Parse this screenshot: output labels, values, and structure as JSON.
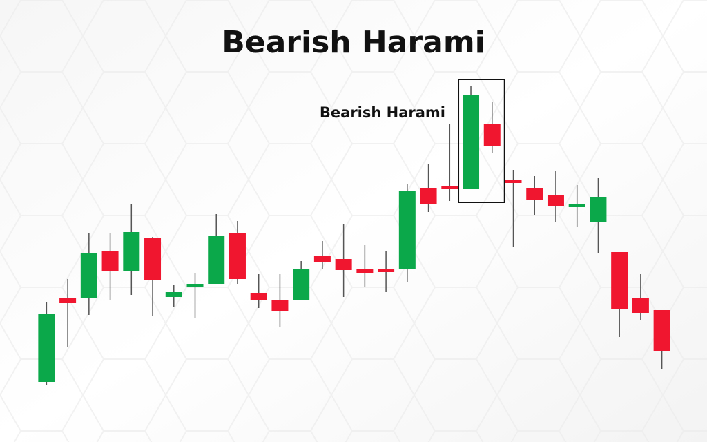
{
  "chart_data": {
    "type": "candlestick",
    "title": "Bearish Harami",
    "open": [
      47,
      169,
      169,
      236,
      208,
      256,
      170,
      185,
      189,
      263,
      176,
      165,
      166,
      230,
      225,
      211,
      210,
      210,
      328,
      330,
      327,
      420,
      339,
      328,
      318,
      300,
      278,
      235,
      169,
      151
    ],
    "high": [
      163,
      196,
      262,
      262,
      304,
      257,
      188,
      205,
      290,
      280,
      203,
      203,
      222,
      251,
      276,
      245,
      237,
      334,
      362,
      420,
      475,
      453,
      354,
      345,
      353,
      332,
      342,
      235,
      203,
      151
    ],
    "low": [
      43,
      98,
      144,
      165,
      173,
      142,
      155,
      140,
      189,
      189,
      154,
      127,
      165,
      210,
      170,
      185,
      177,
      191,
      293,
      309,
      327,
      378,
      243,
      289,
      279,
      271,
      234,
      112,
      136,
      65
    ],
    "close": [
      146,
      161,
      234,
      208,
      264,
      194,
      177,
      189,
      258,
      196,
      165,
      149,
      211,
      220,
      209,
      204,
      206,
      323,
      305,
      326,
      463,
      389,
      335,
      311,
      302,
      304,
      315,
      152,
      147,
      92
    ],
    "up_color": "#0ba84a",
    "down_color": "#f0162f",
    "wick_color": "#555555",
    "ylim": [
      40,
      500
    ],
    "annotation": {
      "text": "Bearish Harami",
      "candles": [
        20,
        21
      ]
    }
  }
}
